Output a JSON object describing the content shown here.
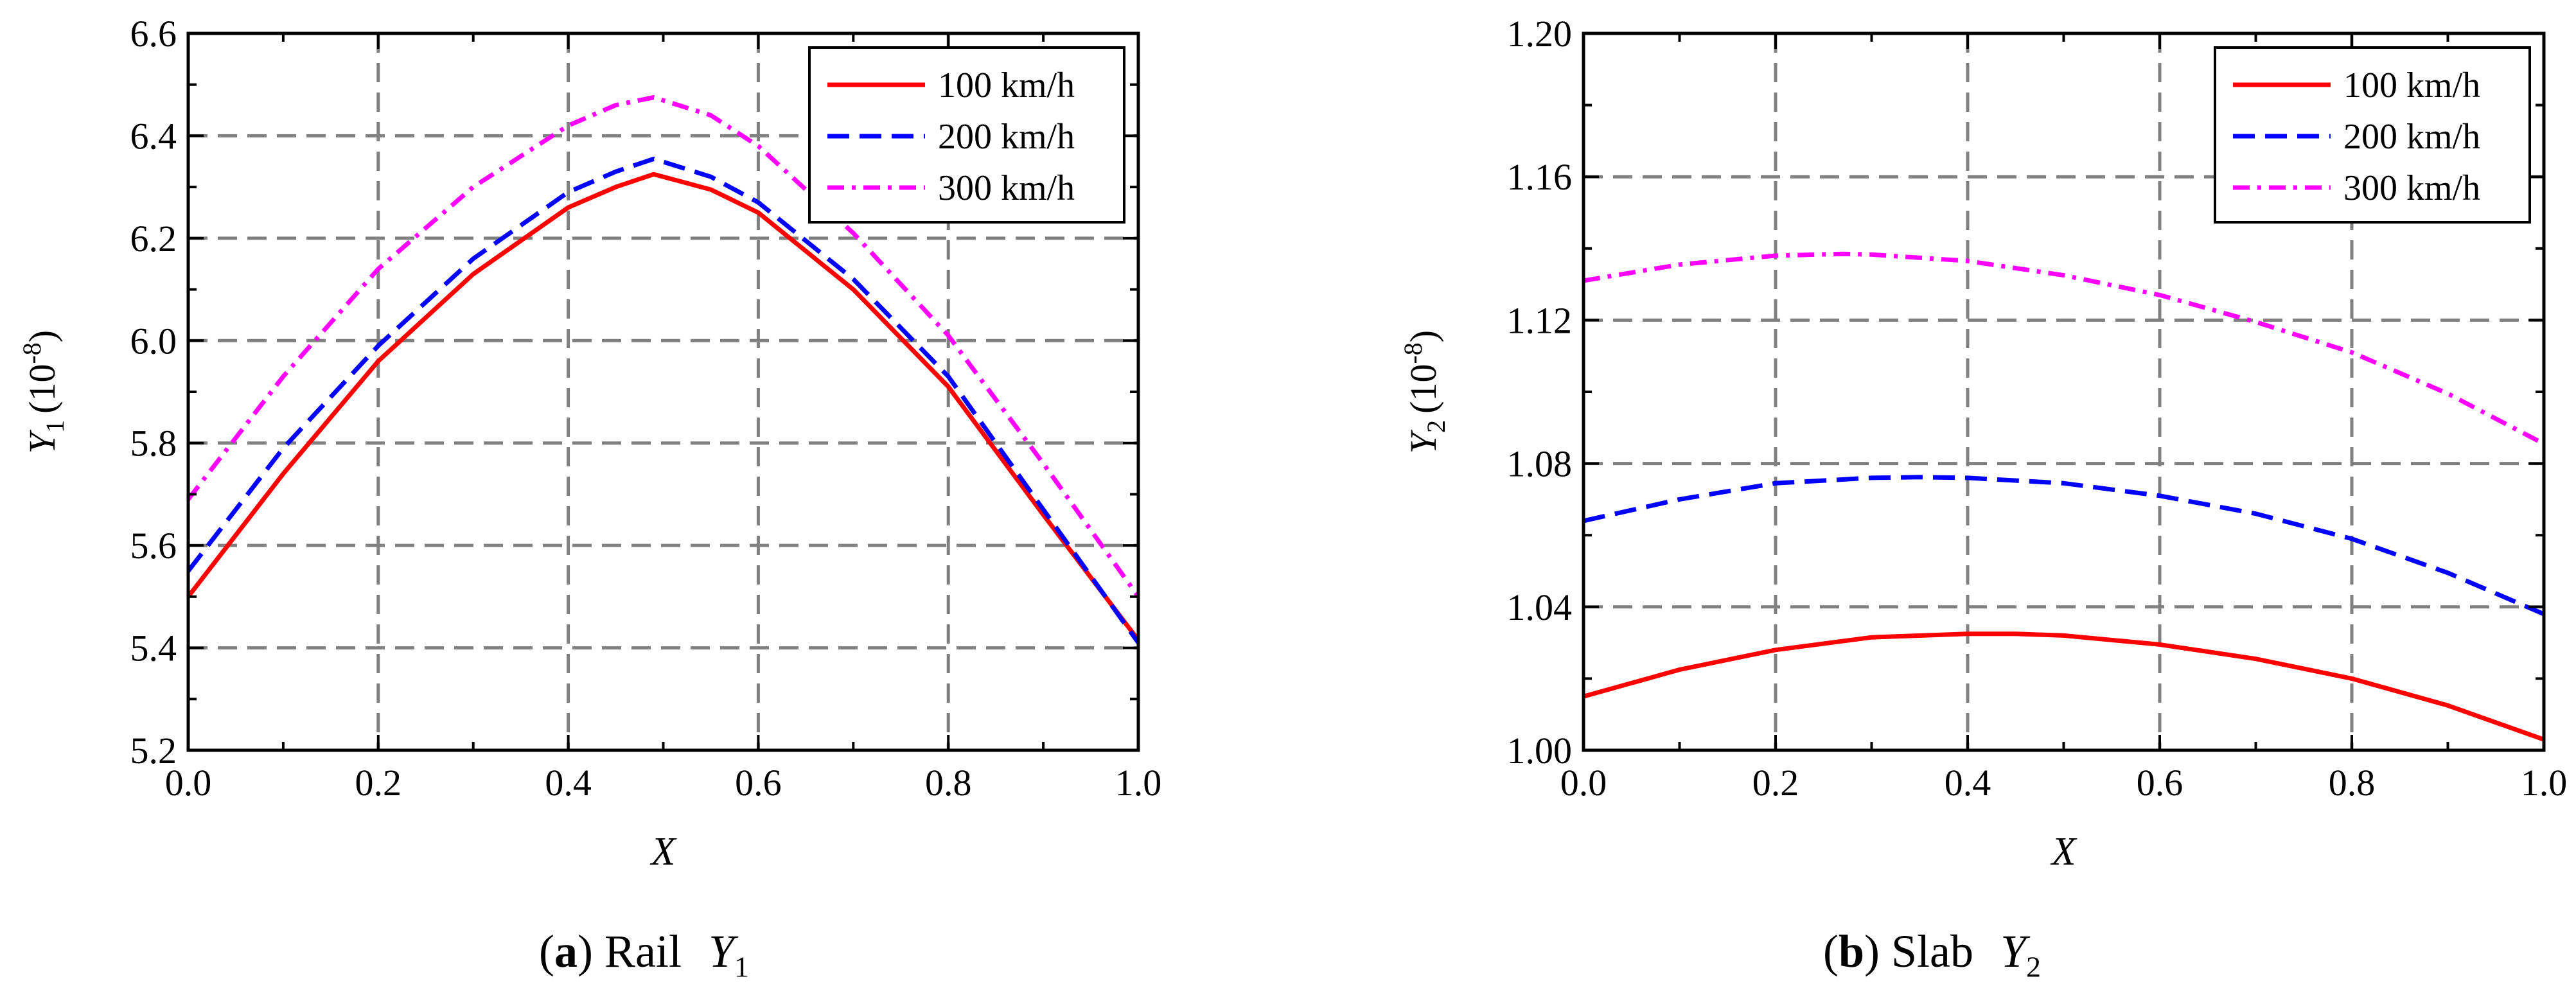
{
  "chart_data": [
    {
      "type": "line",
      "caption": {
        "letter": "a",
        "open": "(",
        "close": ")",
        "text": "Rail",
        "var": "Y",
        "sub": "1"
      },
      "xlabel": "X",
      "ylabel": {
        "var": "Y",
        "sub": "1",
        "unit": "(10",
        "exp": "-8",
        "close": ")"
      },
      "xlim": [
        0.0,
        1.0
      ],
      "ylim": [
        5.2,
        6.6
      ],
      "xticks": [
        0.0,
        0.2,
        0.4,
        0.6,
        0.8,
        1.0
      ],
      "yticks": [
        5.2,
        5.4,
        5.6,
        5.8,
        6.0,
        6.2,
        6.4,
        6.6
      ],
      "xtick_decimals": 1,
      "ytick_decimals": 1,
      "grid": true,
      "legend_position": "top-right",
      "series": [
        {
          "name": "100 km/h",
          "color": "#ff0000",
          "style": "solid",
          "x": [
            0.0,
            0.1,
            0.2,
            0.3,
            0.4,
            0.45,
            0.49,
            0.55,
            0.6,
            0.7,
            0.8,
            0.9,
            1.0
          ],
          "y": [
            5.5,
            5.74,
            5.96,
            6.13,
            6.26,
            6.3,
            6.325,
            6.295,
            6.25,
            6.1,
            5.91,
            5.66,
            5.415
          ]
        },
        {
          "name": "200 km/h",
          "color": "#0000ff",
          "style": "dashed",
          "x": [
            0.0,
            0.1,
            0.2,
            0.3,
            0.4,
            0.45,
            0.49,
            0.55,
            0.6,
            0.7,
            0.8,
            0.9,
            1.0
          ],
          "y": [
            5.55,
            5.79,
            5.99,
            6.16,
            6.29,
            6.33,
            6.355,
            6.32,
            6.27,
            6.12,
            5.93,
            5.67,
            5.41
          ]
        },
        {
          "name": "300 km/h",
          "color": "#ff00ff",
          "style": "dashdot",
          "x": [
            0.0,
            0.1,
            0.2,
            0.3,
            0.4,
            0.45,
            0.49,
            0.55,
            0.6,
            0.7,
            0.8,
            0.9,
            1.0
          ],
          "y": [
            5.69,
            5.93,
            6.14,
            6.3,
            6.42,
            6.46,
            6.475,
            6.44,
            6.38,
            6.21,
            6.01,
            5.76,
            5.5
          ]
        }
      ]
    },
    {
      "type": "line",
      "caption": {
        "letter": "b",
        "open": "(",
        "close": ")",
        "text": "Slab",
        "var": "Y",
        "sub": "2"
      },
      "xlabel": "X",
      "ylabel": {
        "var": "Y",
        "sub": "2",
        "unit": "(10",
        "exp": "-8",
        "close": ")"
      },
      "xlim": [
        0.0,
        1.0
      ],
      "ylim": [
        1.0,
        1.2
      ],
      "xticks": [
        0.0,
        0.2,
        0.4,
        0.6,
        0.8,
        1.0
      ],
      "yticks": [
        1.0,
        1.04,
        1.08,
        1.12,
        1.16,
        1.2
      ],
      "xtick_decimals": 1,
      "ytick_decimals": 2,
      "grid": true,
      "legend_position": "top-right",
      "series": [
        {
          "name": "100 km/h",
          "color": "#ff0000",
          "style": "solid",
          "x": [
            0.0,
            0.1,
            0.2,
            0.3,
            0.4,
            0.45,
            0.5,
            0.6,
            0.7,
            0.8,
            0.9,
            1.0
          ],
          "y": [
            1.015,
            1.0225,
            1.028,
            1.0315,
            1.0325,
            1.0325,
            1.032,
            1.0295,
            1.0255,
            1.02,
            1.0125,
            1.003
          ]
        },
        {
          "name": "200 km/h",
          "color": "#0000ff",
          "style": "dashed",
          "x": [
            0.0,
            0.1,
            0.2,
            0.3,
            0.35,
            0.4,
            0.5,
            0.6,
            0.7,
            0.8,
            0.9,
            1.0
          ],
          "y": [
            1.064,
            1.07,
            1.0745,
            1.076,
            1.0762,
            1.076,
            1.0745,
            1.071,
            1.066,
            1.059,
            1.0495,
            1.038
          ]
        },
        {
          "name": "300 km/h",
          "color": "#ff00ff",
          "style": "dashdot",
          "x": [
            0.0,
            0.1,
            0.2,
            0.27,
            0.3,
            0.4,
            0.5,
            0.6,
            0.7,
            0.8,
            0.9,
            1.0
          ],
          "y": [
            1.131,
            1.1355,
            1.138,
            1.1385,
            1.1383,
            1.1365,
            1.1325,
            1.127,
            1.1195,
            1.111,
            1.0995,
            1.0855
          ]
        }
      ]
    }
  ]
}
